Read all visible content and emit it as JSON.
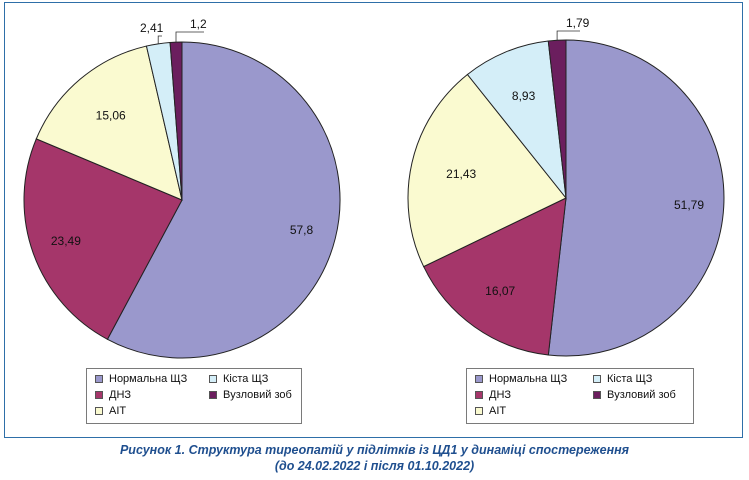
{
  "chart_data": [
    {
      "type": "pie",
      "categories": [
        "Нормальна ЩЗ",
        "ДНЗ",
        "АІТ",
        "Кіста ЩЗ",
        "Вузловий зоб"
      ],
      "values": [
        57.8,
        23.49,
        15.06,
        2.41,
        1.2
      ],
      "value_labels": [
        "57,8",
        "23,49",
        "15,06",
        "2,41",
        "1,2"
      ],
      "colors": [
        "#9a98cc",
        "#a5366a",
        "#fafad0",
        "#d4eef8",
        "#6b1e5e"
      ],
      "legend": "bottom"
    },
    {
      "type": "pie",
      "categories": [
        "Нормальна ЩЗ",
        "ДНЗ",
        "АІТ",
        "Кіста ЩЗ",
        "Вузловий зоб"
      ],
      "values": [
        51.79,
        16.07,
        21.43,
        8.93,
        1.79
      ],
      "value_labels": [
        "51,79",
        "16,07",
        "21,43",
        "8,93",
        "1,79"
      ],
      "colors": [
        "#9a98cc",
        "#a5366a",
        "#fafad0",
        "#d4eef8",
        "#6b1e5e"
      ],
      "legend": "bottom"
    }
  ],
  "legend": {
    "items": [
      {
        "label": "Нормальна ЩЗ",
        "color": "#9a98cc"
      },
      {
        "label": "Кіста ЩЗ",
        "color": "#d4eef8"
      },
      {
        "label": "ДНЗ",
        "color": "#a5366a"
      },
      {
        "label": "Вузловий зоб",
        "color": "#6b1e5e"
      },
      {
        "label": "АІТ",
        "color": "#fafad0"
      }
    ]
  },
  "caption": {
    "line1": "Рисунок 1. Структура тиреопатій у підлітків із ЦД1 у динаміці спостереження",
    "line2": "(до 24.02.2022 і після 01.10.2022)"
  }
}
